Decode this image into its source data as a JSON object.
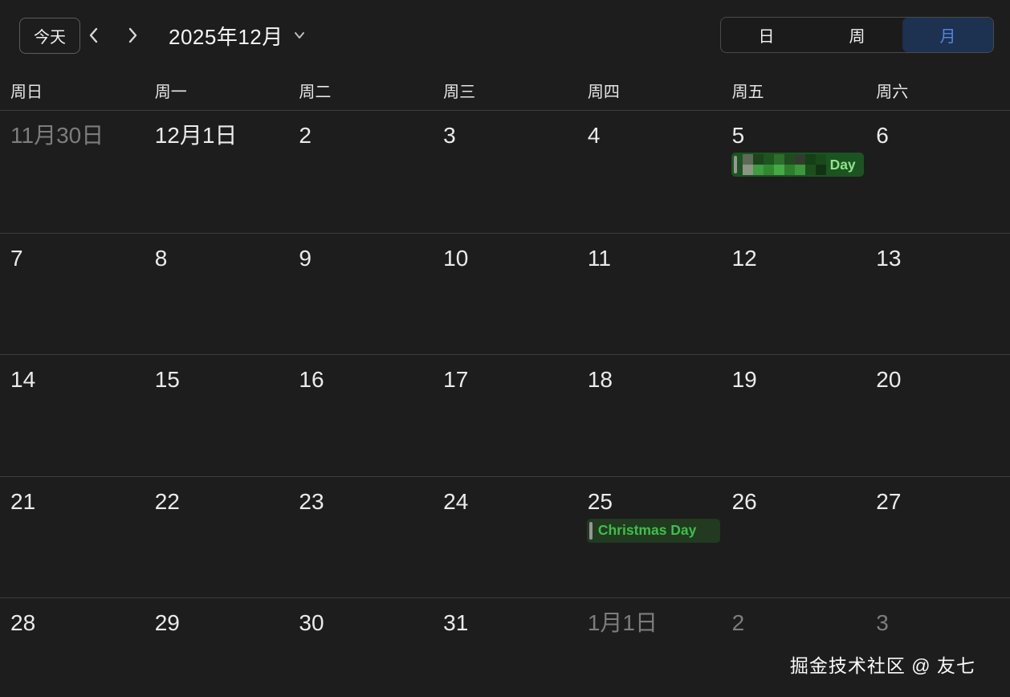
{
  "toolbar": {
    "today_label": "今天",
    "title": "2025年12月",
    "view_options": [
      {
        "label": "日",
        "selected": false
      },
      {
        "label": "周",
        "selected": false
      },
      {
        "label": "月",
        "selected": true
      }
    ]
  },
  "weekday_headers": [
    "周日",
    "周一",
    "周二",
    "周三",
    "周四",
    "周五",
    "周六"
  ],
  "calendar": {
    "rows": [
      [
        {
          "label": "11月30日",
          "muted": true
        },
        {
          "label": "12月1日"
        },
        {
          "label": "2"
        },
        {
          "label": "3"
        },
        {
          "label": "4"
        },
        {
          "label": "5",
          "event": {
            "text": "Day",
            "censored": true,
            "censor_tiles": [
              "#5e6a58",
              "#1c431c",
              "#1e541e",
              "#2c6e2c",
              "#224a22",
              "#333b2e",
              "#153f15",
              "#1a4a1a",
              "#8a9583",
              "#3f9c3f",
              "#2f8a2f",
              "#45a945",
              "#2c7e2c",
              "#3c963c",
              "#1c4f1c",
              "#123312"
            ]
          }
        },
        {
          "label": "6"
        }
      ],
      [
        {
          "label": "7"
        },
        {
          "label": "8"
        },
        {
          "label": "9"
        },
        {
          "label": "10"
        },
        {
          "label": "11"
        },
        {
          "label": "12"
        },
        {
          "label": "13"
        }
      ],
      [
        {
          "label": "14"
        },
        {
          "label": "15"
        },
        {
          "label": "16"
        },
        {
          "label": "17"
        },
        {
          "label": "18"
        },
        {
          "label": "19"
        },
        {
          "label": "20"
        }
      ],
      [
        {
          "label": "21"
        },
        {
          "label": "22"
        },
        {
          "label": "23"
        },
        {
          "label": "24"
        },
        {
          "label": "25",
          "event": {
            "text": "Christmas Day",
            "censored": false
          }
        },
        {
          "label": "26"
        },
        {
          "label": "27"
        }
      ],
      [
        {
          "label": "28"
        },
        {
          "label": "29"
        },
        {
          "label": "30"
        },
        {
          "label": "31"
        },
        {
          "label": "1月1日",
          "muted": true
        },
        {
          "label": "2",
          "muted": true
        },
        {
          "label": "3",
          "muted": true
        }
      ]
    ]
  },
  "watermark": "掘金技术社区 @ 友七",
  "colors": {
    "background": "#1d1d1d",
    "grid_line": "#3d3d3d",
    "accent_blue_bg": "#1d3150",
    "accent_blue_text": "#5585d8",
    "event_green_bg_dark": "#213a20",
    "event_green_bg_bright": "#1b5420",
    "event_text_green": "#3fbf4b",
    "event_text_light_green": "#90e28a",
    "event_accent_bar": "#969696"
  }
}
